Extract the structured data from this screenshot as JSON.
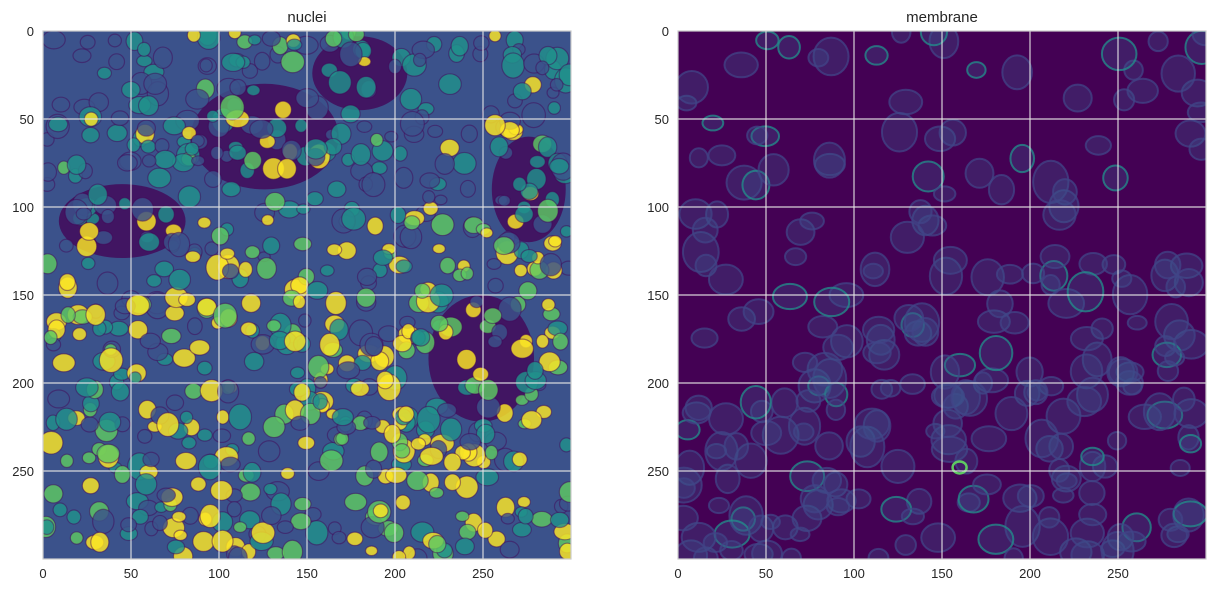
{
  "chart_data": [
    {
      "type": "heatmap",
      "title": "nuclei",
      "xlabel": "",
      "ylabel": "",
      "image_size": [
        300,
        300
      ],
      "xlim": [
        0,
        300
      ],
      "ylim": [
        300,
        0
      ],
      "xticks": [
        0,
        50,
        100,
        150,
        200,
        250
      ],
      "yticks": [
        0,
        50,
        100,
        150,
        200,
        250
      ],
      "colormap": "viridis",
      "grid": true,
      "description_of_content": "fluorescence microscopy: dense nuclei, bright yellow in lower-left and center"
    },
    {
      "type": "heatmap",
      "title": "membrane",
      "xlabel": "",
      "ylabel": "",
      "image_size": [
        300,
        300
      ],
      "xlim": [
        0,
        300
      ],
      "ylim": [
        300,
        0
      ],
      "xticks": [
        0,
        50,
        100,
        150,
        200,
        250
      ],
      "yticks": [
        0,
        50,
        100,
        150,
        200,
        250
      ],
      "colormap": "viridis",
      "grid": true,
      "description_of_content": "fluorescence microscopy: dim cell membranes on dark purple background"
    }
  ],
  "colors": {
    "grid": "#e6e6e6",
    "frame": "#cccccc",
    "background": "#ffffff",
    "viridis_dark": "#440154",
    "viridis_blue": "#3b528b",
    "viridis_teal": "#21918c",
    "viridis_green": "#5ec962",
    "viridis_yellow": "#fde725"
  }
}
